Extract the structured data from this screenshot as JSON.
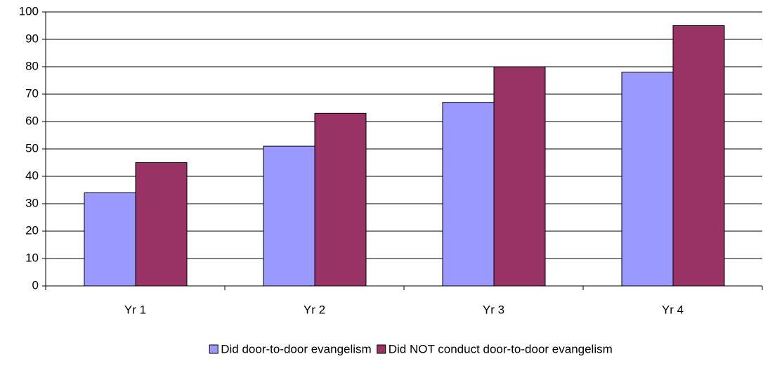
{
  "chart_data": {
    "type": "bar",
    "categories": [
      "Yr 1",
      "Yr 2",
      "Yr 3",
      "Yr 4"
    ],
    "series": [
      {
        "name": "Did door-to-door evangelism",
        "color": "#9999ff",
        "values": [
          34,
          51,
          67,
          78
        ]
      },
      {
        "name": "Did NOT conduct door-to-door evangelism",
        "color": "#993366",
        "values": [
          45,
          63,
          80,
          95
        ]
      }
    ],
    "ylim": [
      0,
      100
    ],
    "yticks": [
      0,
      10,
      20,
      30,
      40,
      50,
      60,
      70,
      80,
      90,
      100
    ],
    "grid": true,
    "legend": "bottom"
  }
}
